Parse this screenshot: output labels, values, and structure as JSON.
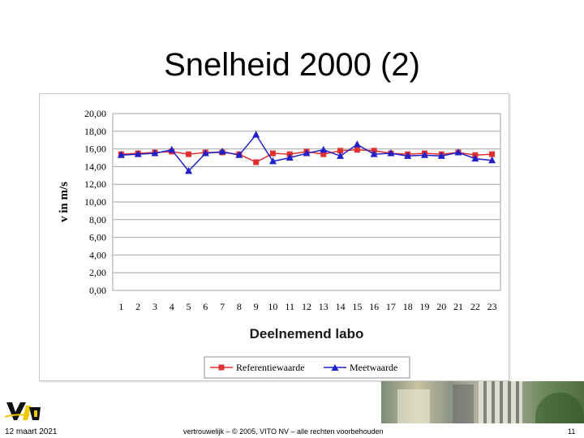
{
  "slide": {
    "title": "Snelheid 2000 (2)"
  },
  "footer": {
    "date": "12 maart 2021",
    "copyright": "vertrouwelijk – © 2005, VITO NV – alle rechten voorbehouden",
    "page_number": "11"
  },
  "logo": {
    "icon": "vito-logo-icon",
    "text": "vito"
  },
  "chart_data": {
    "type": "line",
    "xlabel": "Deelnemend labo",
    "ylabel": "v in m/s",
    "ylim": [
      0,
      20
    ],
    "y_ticks": [
      "0,00",
      "2,00",
      "4,00",
      "6,00",
      "8,00",
      "10,00",
      "12,00",
      "14,00",
      "16,00",
      "18,00",
      "20,00"
    ],
    "categories": [
      "1",
      "2",
      "3",
      "4",
      "5",
      "6",
      "7",
      "8",
      "9",
      "10",
      "11",
      "12",
      "13",
      "14",
      "15",
      "16",
      "17",
      "18",
      "19",
      "20",
      "21",
      "22",
      "23"
    ],
    "grid": true,
    "legend_position": "bottom",
    "series": [
      {
        "name": "Referentiewaarde",
        "color": "#e03030",
        "marker": "square",
        "values": [
          15.4,
          15.5,
          15.6,
          15.7,
          15.4,
          15.6,
          15.6,
          15.4,
          14.5,
          15.5,
          15.4,
          15.7,
          15.4,
          15.8,
          15.9,
          15.8,
          15.5,
          15.4,
          15.5,
          15.4,
          15.6,
          15.3,
          15.4
        ]
      },
      {
        "name": "Meetwaarde",
        "color": "#2020c8",
        "marker": "triangle",
        "values": [
          15.3,
          15.4,
          15.5,
          15.9,
          13.5,
          15.5,
          15.7,
          15.3,
          17.6,
          14.6,
          15.0,
          15.5,
          15.9,
          15.2,
          16.5,
          15.4,
          15.5,
          15.2,
          15.3,
          15.2,
          15.6,
          14.9,
          14.7
        ]
      }
    ]
  }
}
